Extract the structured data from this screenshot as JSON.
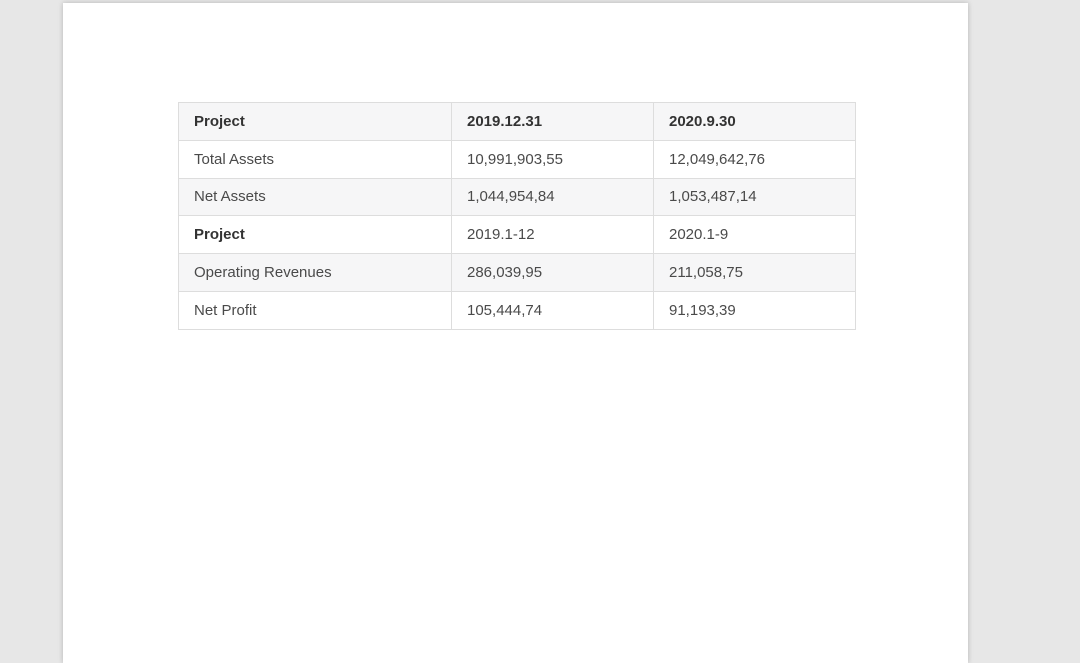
{
  "page": {
    "backdrop_color": "#e7e7e7",
    "paper_color": "#ffffff",
    "stripe_color": "#f6f6f7",
    "border_color": "#dddddd",
    "text_color": "#4a4a4a",
    "header_text_color": "#333333"
  },
  "table": {
    "columns": [
      "Project",
      "2019.12.31",
      "2020.9.30"
    ],
    "rows": [
      {
        "label": "Total Assets",
        "values": [
          "10,991,903,55",
          "12,049,642,76"
        ],
        "emphasis": false
      },
      {
        "label": "Net Assets",
        "values": [
          "1,044,954,84",
          "1,053,487,14"
        ],
        "emphasis": false
      },
      {
        "label": "Project",
        "values": [
          "2019.1-12",
          "2020.1-9"
        ],
        "emphasis": true
      },
      {
        "label": "Operating Revenues",
        "values": [
          "286,039,95",
          "211,058,75"
        ],
        "emphasis": false
      },
      {
        "label": "Net Profit",
        "values": [
          "105,444,74",
          "91,193,39"
        ],
        "emphasis": false
      }
    ]
  }
}
